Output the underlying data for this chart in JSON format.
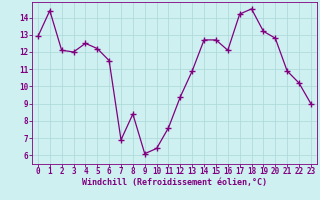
{
  "x": [
    0,
    1,
    2,
    3,
    4,
    5,
    6,
    7,
    8,
    9,
    10,
    11,
    12,
    13,
    14,
    15,
    16,
    17,
    18,
    19,
    20,
    21,
    22,
    23
  ],
  "y": [
    12.9,
    14.4,
    12.1,
    12.0,
    12.5,
    12.2,
    11.5,
    6.9,
    8.4,
    6.1,
    6.4,
    7.6,
    9.4,
    10.9,
    12.7,
    12.7,
    12.1,
    14.2,
    14.5,
    13.2,
    12.8,
    10.9,
    10.2,
    9.0
  ],
  "line_color": "#800080",
  "marker": "+",
  "bg_color": "#cff0f0",
  "grid_color": "#aad8d8",
  "axis_color": "#800080",
  "tick_color": "#800080",
  "xlabel": "Windchill (Refroidissement éolien,°C)",
  "ylim": [
    5.5,
    14.9
  ],
  "xlim": [
    -0.5,
    23.5
  ],
  "yticks": [
    6,
    7,
    8,
    9,
    10,
    11,
    12,
    13,
    14
  ],
  "xticks": [
    0,
    1,
    2,
    3,
    4,
    5,
    6,
    7,
    8,
    9,
    10,
    11,
    12,
    13,
    14,
    15,
    16,
    17,
    18,
    19,
    20,
    21,
    22,
    23
  ],
  "line_width": 0.9,
  "marker_size": 4,
  "marker_edge_width": 1.0,
  "tick_fontsize": 5.5,
  "xlabel_fontsize": 6.0
}
